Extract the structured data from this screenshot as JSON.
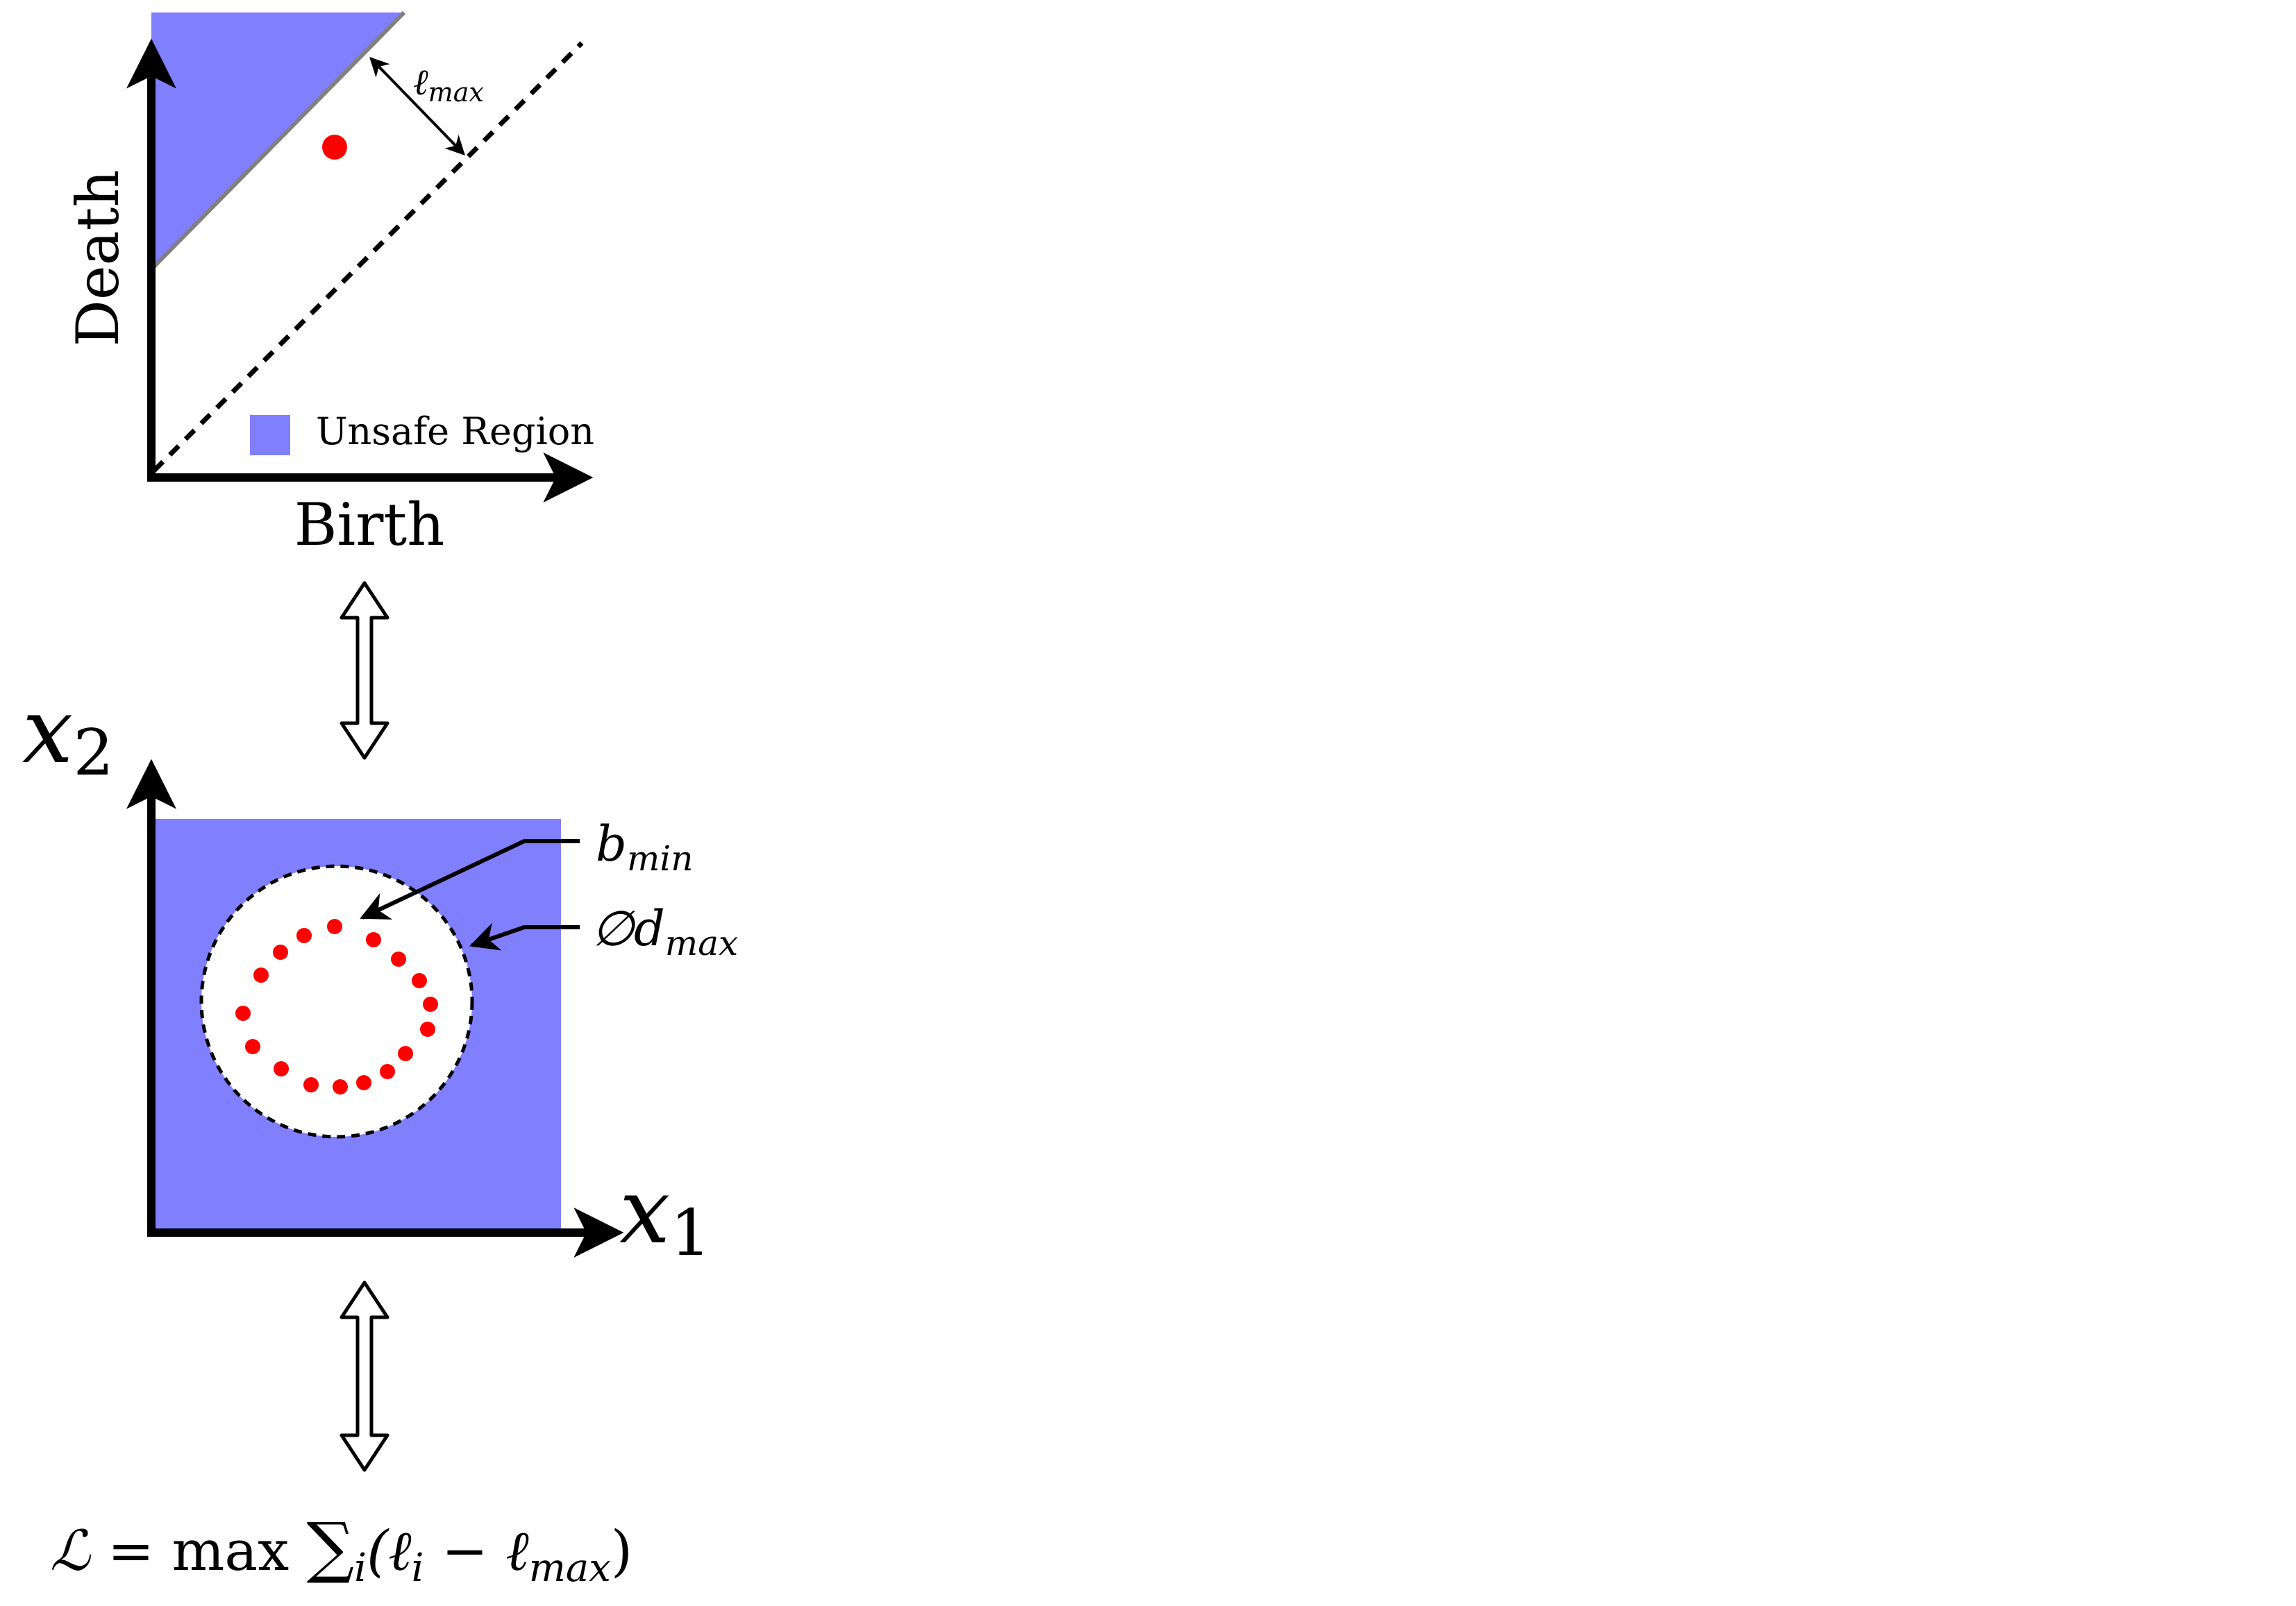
{
  "persistence_diagram": {
    "x_axis_label": "Birth",
    "y_axis_label": "Death",
    "legend_label": "Unsafe Region",
    "lmax_symbol": "ℓ",
    "lmax_subscript": "max"
  },
  "input_space": {
    "x1_symbol": "x",
    "x1_subscript": "1",
    "x2_symbol": "x",
    "x2_subscript": "2",
    "bmin_symbol": "b",
    "bmin_subscript": "min",
    "dmax_symbol": "∅d",
    "dmax_subscript": "max"
  },
  "loss": {
    "lhs": "ℒ",
    "eq": " = max ",
    "sum": "∑",
    "sum_sub": "i",
    "open": "(ℓ",
    "li_sub": "i",
    "minus": " − ℓ",
    "lmax_sub": "max",
    "close": ")"
  },
  "colors": {
    "unsafe_region": "#8080ff",
    "point": "#ff0000",
    "axis": "#000000"
  }
}
